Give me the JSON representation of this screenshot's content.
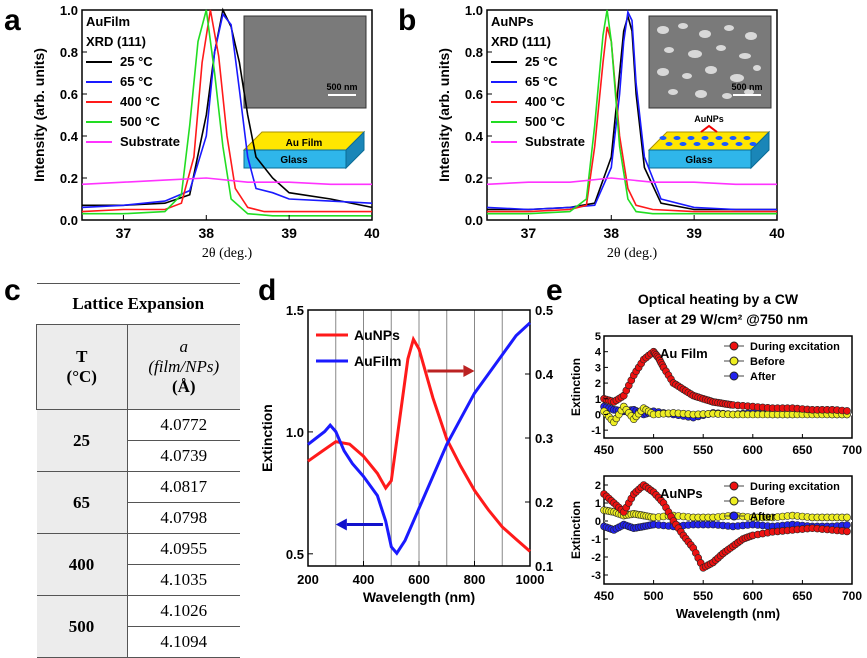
{
  "panel_labels": [
    "a",
    "b",
    "c",
    "d",
    "e"
  ],
  "chart_data": [
    {
      "id": "a",
      "type": "line",
      "xlabel": "2θ (deg.)",
      "ylabel": "Intensity (arb. units)",
      "xlim": [
        36.5,
        40
      ],
      "ylim": [
        0,
        1.0
      ],
      "xticks": [
        "37",
        "38",
        "39",
        "40"
      ],
      "yticks": [
        "0.0",
        "0.2",
        "0.4",
        "0.6",
        "0.8",
        "1.0"
      ],
      "legend_title": [
        "AuFilm",
        "XRD (111)"
      ],
      "inset_scale": "500 nm",
      "schematic_labels": [
        "Au Film",
        "Glass"
      ],
      "series": [
        {
          "name": "25 °C",
          "color": "#000000",
          "x": [
            36.5,
            37.0,
            37.5,
            37.8,
            38.0,
            38.1,
            38.2,
            38.3,
            38.4,
            38.5,
            38.6,
            38.8,
            39.0,
            39.5,
            40.0
          ],
          "y": [
            0.07,
            0.07,
            0.08,
            0.12,
            0.5,
            0.8,
            1.0,
            0.92,
            0.75,
            0.5,
            0.3,
            0.2,
            0.13,
            0.1,
            0.06
          ]
        },
        {
          "name": "65 °C",
          "color": "#1a1aff",
          "x": [
            36.5,
            37.0,
            37.5,
            37.8,
            38.0,
            38.1,
            38.2,
            38.3,
            38.4,
            38.5,
            38.6,
            38.8,
            39.0,
            39.5,
            40.0
          ],
          "y": [
            0.06,
            0.07,
            0.09,
            0.14,
            0.4,
            0.8,
            0.98,
            0.93,
            0.62,
            0.3,
            0.15,
            0.13,
            0.1,
            0.09,
            0.08
          ]
        },
        {
          "name": "400 °C",
          "color": "#ff1a1a",
          "x": [
            36.5,
            37.0,
            37.5,
            37.7,
            37.85,
            37.95,
            38.05,
            38.15,
            38.25,
            38.35,
            38.5,
            38.7,
            39.0,
            39.5,
            40.0
          ],
          "y": [
            0.04,
            0.05,
            0.05,
            0.08,
            0.3,
            0.75,
            1.0,
            0.78,
            0.4,
            0.15,
            0.06,
            0.04,
            0.04,
            0.04,
            0.04
          ]
        },
        {
          "name": "500 °C",
          "color": "#22dd22",
          "x": [
            36.5,
            37.0,
            37.5,
            37.7,
            37.8,
            37.9,
            38.0,
            38.1,
            38.2,
            38.3,
            38.5,
            38.8,
            39.0,
            39.5,
            40.0
          ],
          "y": [
            0.03,
            0.03,
            0.04,
            0.12,
            0.45,
            0.85,
            1.0,
            0.7,
            0.35,
            0.1,
            0.03,
            0.02,
            0.02,
            0.02,
            0.02
          ]
        },
        {
          "name": "Substrate",
          "color": "#ff33ff",
          "x": [
            36.5,
            37.0,
            37.5,
            38.0,
            38.5,
            39.0,
            39.5,
            40.0
          ],
          "y": [
            0.17,
            0.18,
            0.19,
            0.2,
            0.18,
            0.18,
            0.17,
            0.17
          ]
        }
      ]
    },
    {
      "id": "b",
      "type": "line",
      "xlabel": "2θ (deg.)",
      "ylabel": "Intensity (arb. units)",
      "xlim": [
        36.5,
        40
      ],
      "ylim": [
        0,
        1.0
      ],
      "xticks": [
        "37",
        "38",
        "39",
        "40"
      ],
      "yticks": [
        "0.0",
        "0.2",
        "0.4",
        "0.6",
        "0.8",
        "1.0"
      ],
      "legend_title": [
        "AuNPs",
        "XRD (111)"
      ],
      "inset_scale": "500 nm",
      "schematic_labels": [
        "AuNPs",
        "Glass"
      ],
      "series": [
        {
          "name": "25 °C",
          "color": "#000000",
          "x": [
            36.5,
            37.0,
            37.5,
            37.8,
            38.0,
            38.1,
            38.15,
            38.2,
            38.25,
            38.3,
            38.4,
            38.6,
            39.0,
            39.5,
            40.0
          ],
          "y": [
            0.05,
            0.05,
            0.06,
            0.08,
            0.3,
            0.7,
            0.9,
            0.97,
            0.9,
            0.6,
            0.25,
            0.08,
            0.05,
            0.05,
            0.05
          ]
        },
        {
          "name": "65 °C",
          "color": "#1a1aff",
          "x": [
            36.5,
            37.0,
            37.5,
            37.8,
            38.0,
            38.1,
            38.15,
            38.2,
            38.25,
            38.3,
            38.4,
            38.6,
            39.0,
            39.5,
            40.0
          ],
          "y": [
            0.06,
            0.05,
            0.06,
            0.07,
            0.25,
            0.6,
            0.85,
            0.99,
            0.95,
            0.65,
            0.3,
            0.1,
            0.06,
            0.05,
            0.05
          ]
        },
        {
          "name": "400 °C",
          "color": "#ff1a1a",
          "x": [
            36.5,
            37.0,
            37.5,
            37.7,
            37.8,
            37.9,
            37.95,
            38.0,
            38.1,
            38.2,
            38.3,
            38.5,
            39.0,
            39.5,
            40.0
          ],
          "y": [
            0.04,
            0.04,
            0.05,
            0.07,
            0.35,
            0.75,
            0.92,
            0.85,
            0.4,
            0.15,
            0.07,
            0.05,
            0.04,
            0.04,
            0.04
          ]
        },
        {
          "name": "500 °C",
          "color": "#22dd22",
          "x": [
            36.5,
            37.0,
            37.5,
            37.7,
            37.8,
            37.9,
            37.95,
            38.0,
            38.1,
            38.2,
            38.3,
            38.5,
            39.0,
            39.5,
            40.0
          ],
          "y": [
            0.03,
            0.03,
            0.04,
            0.1,
            0.45,
            0.88,
            1.0,
            0.85,
            0.35,
            0.1,
            0.04,
            0.03,
            0.03,
            0.03,
            0.03
          ]
        },
        {
          "name": "Substrate",
          "color": "#ff33ff",
          "x": [
            36.5,
            37.0,
            37.5,
            38.0,
            38.5,
            39.0,
            39.5,
            40.0
          ],
          "y": [
            0.17,
            0.18,
            0.18,
            0.2,
            0.18,
            0.18,
            0.17,
            0.17
          ]
        }
      ]
    },
    {
      "id": "c",
      "type": "table",
      "title": "Lattice Expansion",
      "col_headers": {
        "t_label": "T",
        "t_unit": "(°C)",
        "a_label": "a",
        "a_desc": "(film/NPs)",
        "a_unit": "(Å)"
      },
      "rows": [
        {
          "T": "25",
          "values": [
            "4.0772",
            "4.0739"
          ]
        },
        {
          "T": "65",
          "values": [
            "4.0817",
            "4.0798"
          ]
        },
        {
          "T": "400",
          "values": [
            "4.0955",
            "4.1035"
          ]
        },
        {
          "T": "500",
          "values": [
            "4.1026",
            "4.1094"
          ]
        }
      ]
    },
    {
      "id": "d",
      "type": "line",
      "xlabel": "Wavelength (nm)",
      "ylabel": "Extinction",
      "xlim": [
        200,
        1000
      ],
      "ylim": [
        0.45,
        1.5
      ],
      "ylim_right": [
        0.1,
        0.5
      ],
      "xticks": [
        "200",
        "400",
        "600",
        "800",
        "1000"
      ],
      "yticks": [
        "0.5",
        "1.0",
        "1.5"
      ],
      "yticks_right": [
        "0.1",
        "0.2",
        "0.3",
        "0.4",
        "0.5"
      ],
      "gridlines_x": [
        300,
        400,
        500,
        600,
        700,
        800,
        900
      ],
      "series": [
        {
          "name": "AuNPs",
          "color": "#ff1a1a",
          "axis": "left",
          "x": [
            200,
            250,
            300,
            350,
            400,
            450,
            480,
            500,
            530,
            560,
            580,
            600,
            650,
            700,
            750,
            800,
            850,
            900,
            950,
            1000
          ],
          "y": [
            0.88,
            0.92,
            0.96,
            0.95,
            0.9,
            0.83,
            0.77,
            0.8,
            1.05,
            1.3,
            1.38,
            1.34,
            1.14,
            0.97,
            0.86,
            0.76,
            0.68,
            0.61,
            0.56,
            0.51
          ]
        },
        {
          "name": "AuFilm",
          "color": "#1a1aff",
          "axis": "right",
          "x": [
            200,
            230,
            260,
            280,
            300,
            330,
            360,
            400,
            450,
            480,
            500,
            520,
            550,
            600,
            650,
            700,
            750,
            800,
            850,
            900,
            950,
            1000
          ],
          "y": [
            0.29,
            0.3,
            0.31,
            0.32,
            0.31,
            0.28,
            0.26,
            0.24,
            0.21,
            0.17,
            0.13,
            0.12,
            0.14,
            0.19,
            0.24,
            0.29,
            0.33,
            0.37,
            0.4,
            0.43,
            0.46,
            0.48
          ]
        }
      ]
    },
    {
      "id": "e-top",
      "type": "scatter",
      "title": [
        "Optical heating by a CW",
        "laser at 29 W/cm² @750 nm"
      ],
      "label": "Au Film",
      "ylabel": "Extinction",
      "xlim": [
        450,
        700
      ],
      "ylim": [
        -1.5,
        5
      ],
      "xticks": [
        "450",
        "500",
        "550",
        "600",
        "650",
        "700"
      ],
      "yticks": [
        "-1",
        "0",
        "1",
        "2",
        "3",
        "4",
        "5"
      ],
      "series": [
        {
          "name": "During excitation",
          "color": "#ee1111",
          "x": [
            450,
            460,
            470,
            480,
            490,
            500,
            505,
            510,
            520,
            530,
            540,
            550,
            560,
            570,
            580,
            600,
            620,
            640,
            660,
            680,
            700
          ],
          "y": [
            1.0,
            0.8,
            1.2,
            2.5,
            3.5,
            4.0,
            3.6,
            3.0,
            2.0,
            1.6,
            1.2,
            1.0,
            0.8,
            0.7,
            0.6,
            0.5,
            0.4,
            0.4,
            0.3,
            0.3,
            0.2
          ]
        },
        {
          "name": "Before",
          "color": "#eeee22",
          "x": [
            450,
            460,
            470,
            480,
            490,
            500,
            520,
            540,
            560,
            580,
            600,
            620,
            640,
            660,
            680,
            700
          ],
          "y": [
            0.2,
            -0.5,
            0.5,
            -0.3,
            0.4,
            0.0,
            0.1,
            0.0,
            0.05,
            0.0,
            0.0,
            0.0,
            0.0,
            0.0,
            0.0,
            0.0
          ]
        },
        {
          "name": "After",
          "color": "#2222ee",
          "x": [
            450,
            460,
            470,
            480,
            490,
            500,
            520,
            540,
            560,
            580,
            600,
            620,
            640,
            660,
            680,
            700
          ],
          "y": [
            0.5,
            0.3,
            0.2,
            0.3,
            0.0,
            0.2,
            0.0,
            -0.2,
            0.1,
            0.0,
            0.1,
            0.0,
            0.0,
            0.1,
            0.0,
            0.0
          ]
        }
      ]
    },
    {
      "id": "e-bottom",
      "type": "scatter",
      "label": "AuNPs",
      "ylabel": "Extinction",
      "xlabel": "Wavelength (nm)",
      "xlim": [
        450,
        700
      ],
      "ylim": [
        -3.5,
        2.5
      ],
      "xticks": [
        "450",
        "500",
        "550",
        "600",
        "650",
        "700"
      ],
      "yticks": [
        "-3",
        "-2",
        "-1",
        "0",
        "1",
        "2"
      ],
      "series": [
        {
          "name": "During excitation",
          "color": "#ee1111",
          "x": [
            450,
            460,
            470,
            480,
            490,
            500,
            510,
            520,
            530,
            540,
            550,
            560,
            570,
            580,
            590,
            600,
            620,
            640,
            660,
            680,
            700
          ],
          "y": [
            1.5,
            1.0,
            0.5,
            1.5,
            2.0,
            1.6,
            1.0,
            0.0,
            -0.8,
            -1.5,
            -2.6,
            -2.3,
            -1.8,
            -1.4,
            -1.0,
            -0.8,
            -0.6,
            -0.5,
            -0.4,
            -0.5,
            -0.6
          ]
        },
        {
          "name": "Before",
          "color": "#eeee22",
          "x": [
            450,
            460,
            470,
            480,
            490,
            500,
            520,
            540,
            560,
            580,
            600,
            620,
            640,
            660,
            680,
            700
          ],
          "y": [
            0.6,
            0.5,
            0.3,
            0.4,
            0.3,
            0.2,
            0.3,
            0.2,
            0.2,
            0.3,
            0.2,
            0.2,
            0.3,
            0.2,
            0.2,
            0.2
          ]
        },
        {
          "name": "After",
          "color": "#2222ee",
          "x": [
            450,
            460,
            470,
            480,
            490,
            500,
            520,
            540,
            560,
            580,
            600,
            620,
            640,
            660,
            680,
            700
          ],
          "y": [
            -0.3,
            -0.5,
            -0.2,
            -0.4,
            -0.3,
            -0.2,
            -0.3,
            -0.2,
            -0.2,
            -0.3,
            -0.2,
            -0.3,
            -0.2,
            -0.3,
            -0.3,
            -0.2
          ]
        }
      ]
    }
  ]
}
